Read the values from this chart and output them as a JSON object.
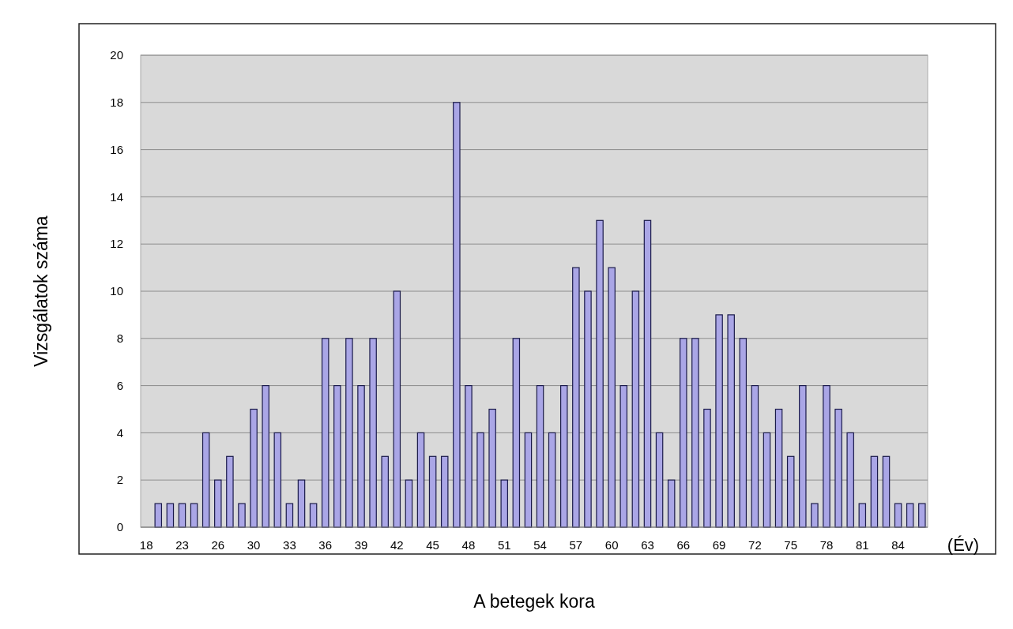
{
  "chart_data": {
    "type": "bar",
    "xlabel": "A betegek kora",
    "ylabel": "Vizsgálatok száma",
    "annotations": [
      "(Év)"
    ],
    "categories": [
      "18",
      null,
      null,
      "23",
      null,
      null,
      "26",
      null,
      null,
      "30",
      null,
      null,
      "33",
      null,
      null,
      "36",
      null,
      null,
      "39",
      null,
      null,
      "42",
      null,
      null,
      "45",
      null,
      null,
      "48",
      null,
      null,
      "51",
      null,
      null,
      "54",
      null,
      null,
      "57",
      null,
      null,
      "60",
      null,
      null,
      "63",
      null,
      null,
      "66",
      null,
      null,
      "69",
      null,
      null,
      "72",
      null,
      null,
      "75",
      null,
      null,
      "78",
      null,
      null,
      "81",
      null,
      null,
      "84",
      null,
      null
    ],
    "values": [
      0,
      1,
      1,
      1,
      1,
      4,
      2,
      3,
      1,
      5,
      6,
      4,
      1,
      2,
      1,
      8,
      6,
      8,
      6,
      8,
      3,
      10,
      2,
      4,
      3,
      3,
      18,
      6,
      4,
      5,
      2,
      8,
      4,
      6,
      4,
      6,
      11,
      10,
      13,
      11,
      6,
      10,
      13,
      4,
      2,
      8,
      8,
      5,
      9,
      9,
      8,
      6,
      4,
      5,
      3,
      6,
      1,
      6,
      5,
      4,
      1,
      3,
      3,
      1,
      1,
      1
    ],
    "color": "#aaa6e6",
    "ylim": [
      0,
      20
    ],
    "yticks": [
      0,
      2,
      4,
      6,
      8,
      10,
      12,
      14,
      16,
      18,
      20
    ],
    "grid": "y"
  }
}
